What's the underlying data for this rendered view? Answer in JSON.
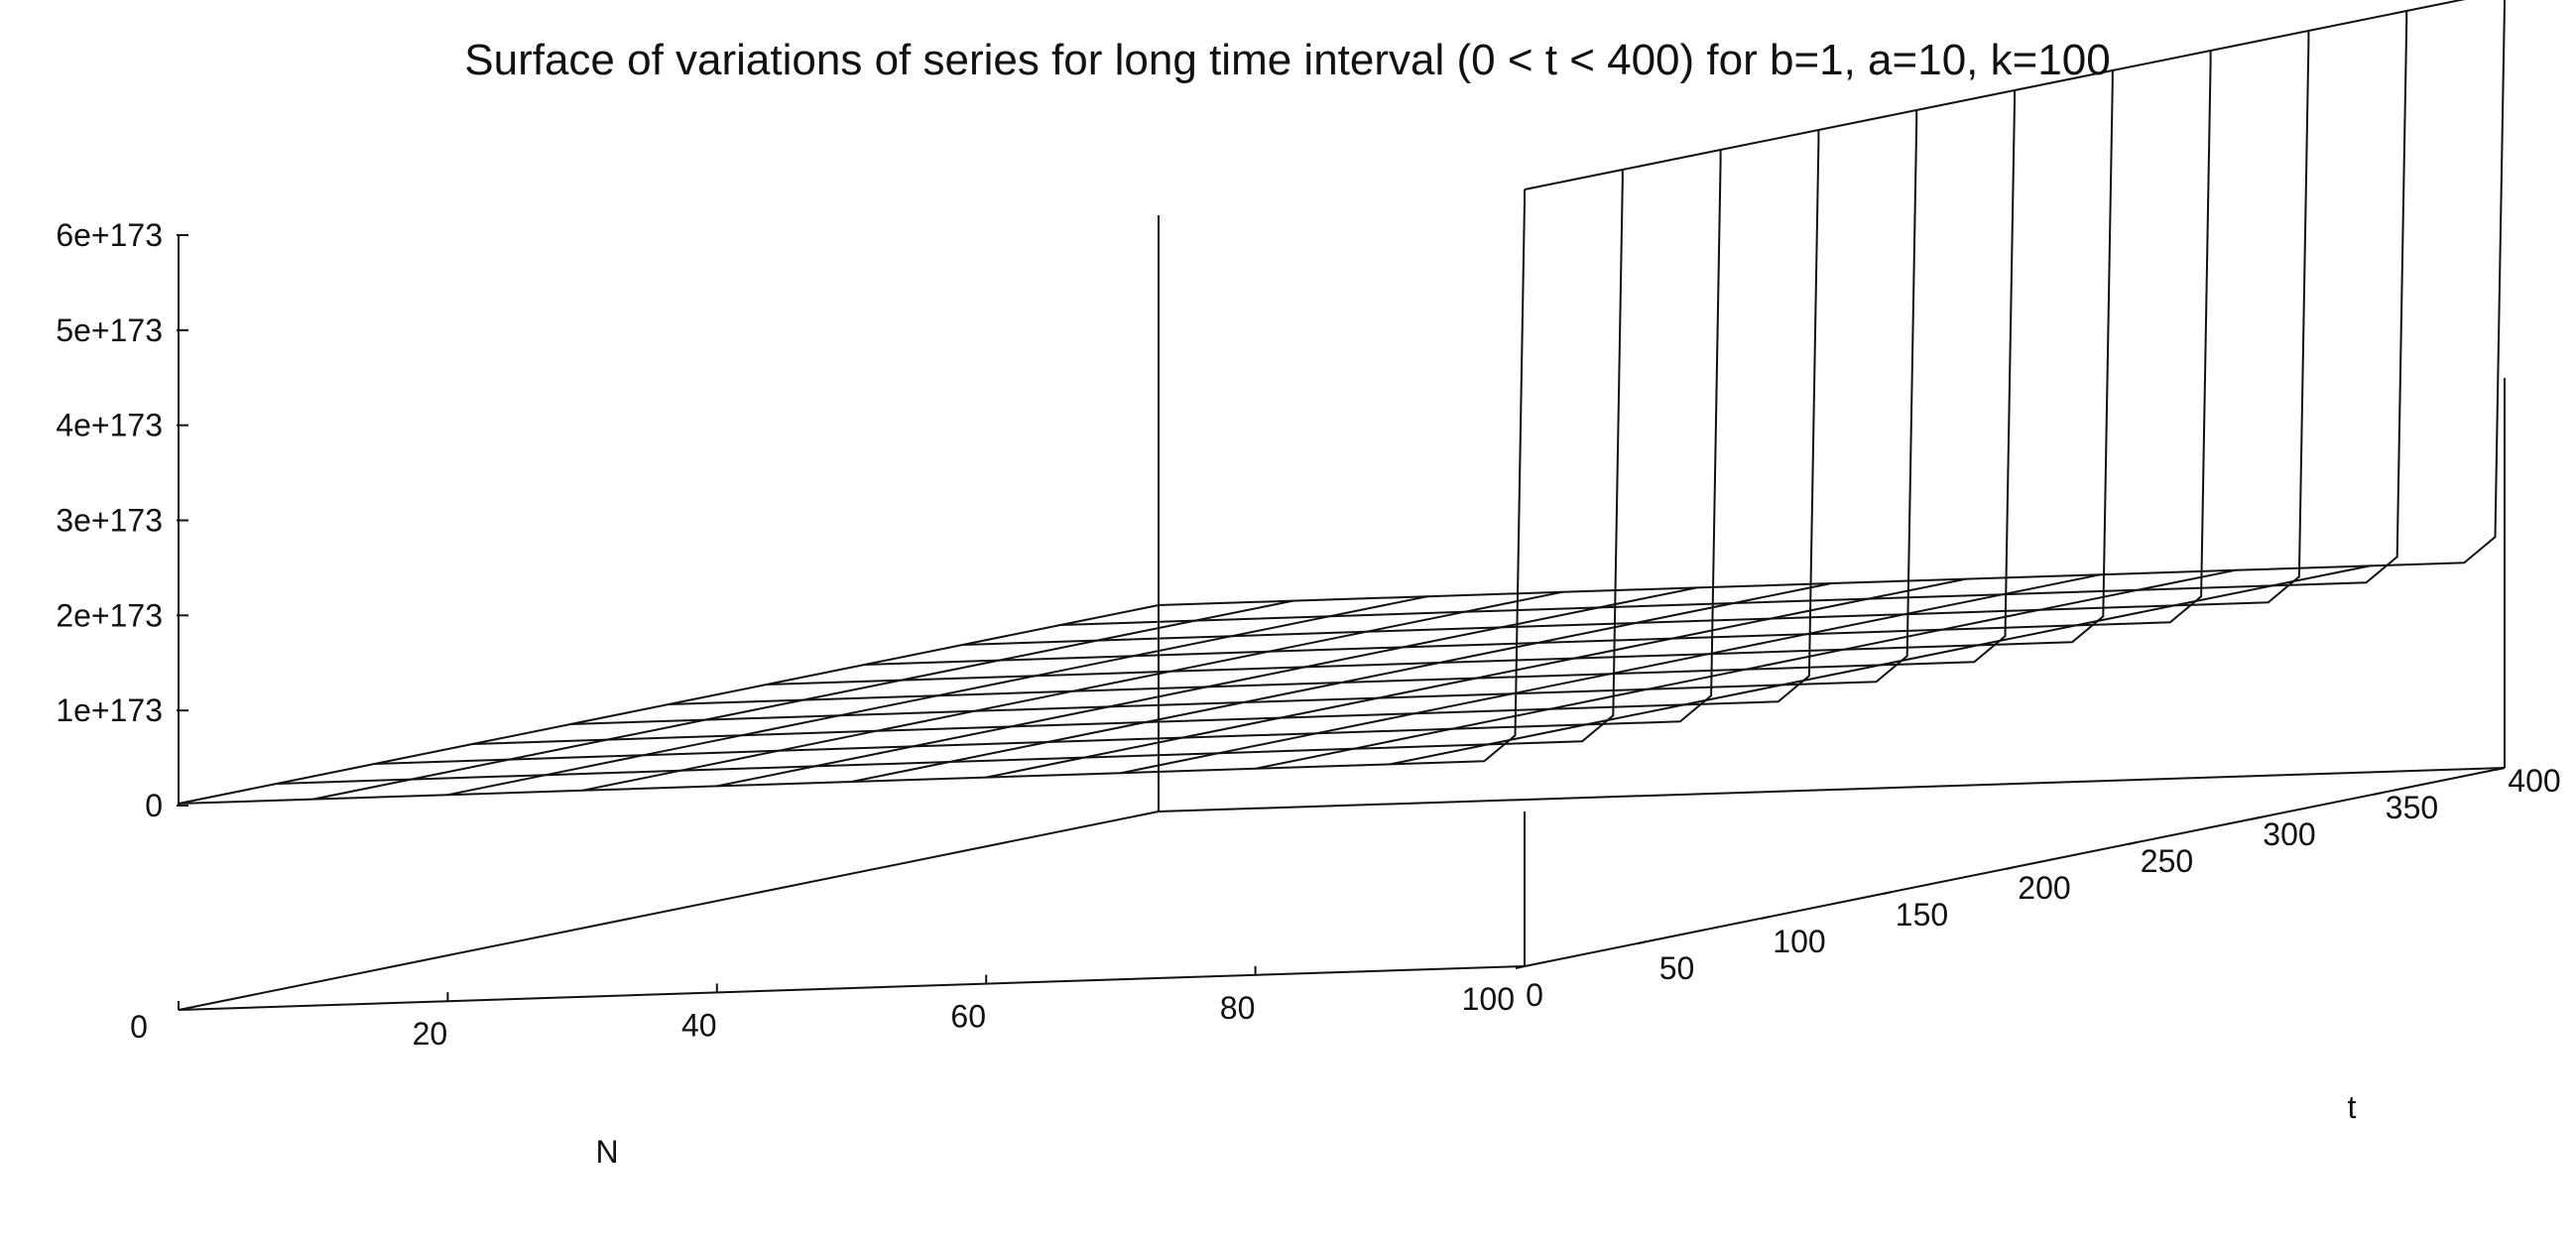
{
  "chart_data": {
    "type": "surface3d",
    "title": "Surface of variations of series for long time interval (0 < t < 400) for b=1, a=10, k=100",
    "xlabel": "N",
    "ylabel": "t",
    "zlabel": "",
    "xlim": [
      0,
      100
    ],
    "ylim": [
      0,
      400
    ],
    "zlim": [
      0,
      6e+173
    ],
    "x_ticks": [
      "0",
      "20",
      "40",
      "60",
      "80",
      "100"
    ],
    "y_ticks": [
      "0",
      "50",
      "100",
      "150",
      "200",
      "250",
      "300",
      "350",
      "400"
    ],
    "z_ticks": [
      "0",
      "1e+173",
      "2e+173",
      "3e+173",
      "4e+173",
      "5e+173",
      "6e+173"
    ],
    "grid_N": [
      0,
      10,
      20,
      30,
      40,
      50,
      60,
      70,
      80,
      90,
      100
    ],
    "grid_t": [
      0,
      40,
      80,
      120,
      160,
      200,
      240,
      280,
      320,
      360,
      400
    ],
    "surface_description_values": {
      "z_at_N_0_to_99": 0,
      "z_at_N_100": 6e+173
    }
  }
}
